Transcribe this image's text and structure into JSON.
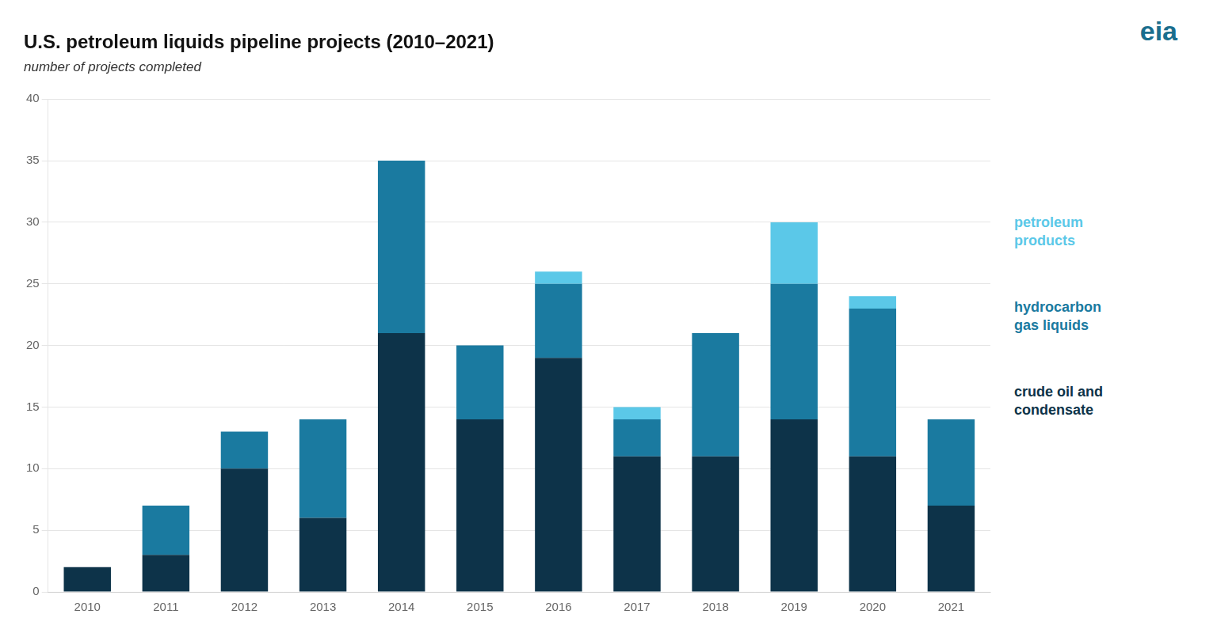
{
  "chart_data": {
    "type": "bar",
    "title": "U.S. petroleum liquids pipeline projects (2010–2021)",
    "subtitle": "number of projects completed",
    "categories": [
      "2010",
      "2011",
      "2012",
      "2013",
      "2014",
      "2015",
      "2016",
      "2017",
      "2018",
      "2019",
      "2020",
      "2021"
    ],
    "series": [
      {
        "name": "crude oil and\ncondensate",
        "color": "#0d3349",
        "values": [
          2,
          3,
          10,
          6,
          21,
          14,
          19,
          11,
          11,
          14,
          11,
          7
        ]
      },
      {
        "name": "hydrocarbon\ngas liquids",
        "color": "#1a7aa0",
        "values": [
          0,
          4,
          3,
          8,
          14,
          6,
          6,
          3,
          10,
          11,
          12,
          7
        ]
      },
      {
        "name": "petroleum\nproducts",
        "color": "#5bc8e8",
        "values": [
          0,
          0,
          0,
          0,
          0,
          0,
          1,
          1,
          0,
          5,
          1,
          0
        ]
      }
    ],
    "stacked": true,
    "ylim": [
      0,
      40
    ],
    "yticks": [
      0,
      5,
      10,
      15,
      20,
      25,
      30,
      35,
      40
    ],
    "grid": true,
    "legend": "right",
    "annotations": [
      {
        "text": "eia"
      }
    ]
  }
}
